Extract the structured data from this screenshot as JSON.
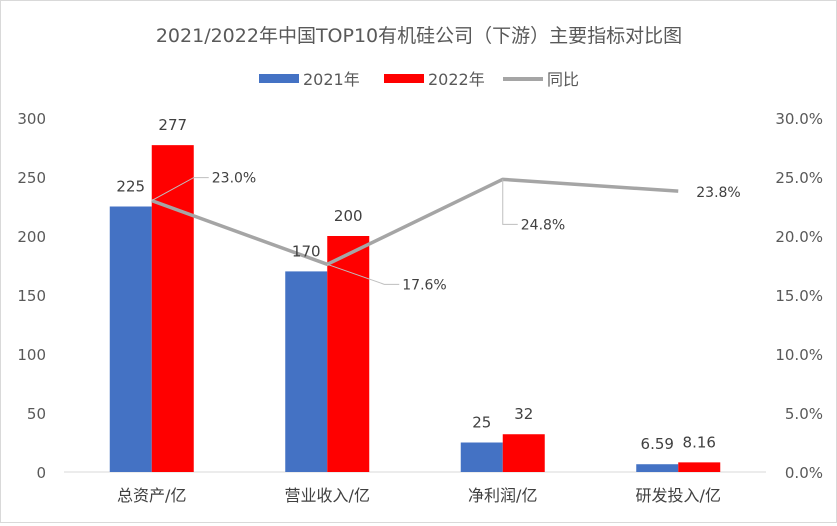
{
  "chart_data": {
    "type": "bar",
    "title": "2021/2022年中国TOP10有机硅公司（下游）主要指标对比图",
    "categories": [
      "总资产/亿",
      "营业收入/亿",
      "净利润/亿",
      "研发投入/亿"
    ],
    "series": [
      {
        "name": "2021年",
        "type": "bar",
        "axis": "left",
        "color": "#4472C4",
        "values": [
          225,
          170,
          25,
          6.59
        ],
        "labels": [
          "225",
          "170",
          "25",
          "6.59"
        ]
      },
      {
        "name": "2022年",
        "type": "bar",
        "axis": "left",
        "color": "#FF0000",
        "values": [
          277,
          200,
          32,
          8.16
        ],
        "labels": [
          "277",
          "200",
          "32",
          "8.16"
        ]
      },
      {
        "name": "同比",
        "type": "line",
        "axis": "right",
        "color": "#A5A5A5",
        "values": [
          23.0,
          17.6,
          24.8,
          23.8
        ],
        "labels": [
          "23.0%",
          "17.6%",
          "24.8%",
          "23.8%"
        ]
      }
    ],
    "ylim": [
      0,
      300
    ],
    "yticks": [
      "0",
      "50",
      "100",
      "150",
      "200",
      "250",
      "300"
    ],
    "y2lim": [
      0,
      30
    ],
    "y2ticks": [
      "0.0%",
      "5.0%",
      "10.0%",
      "15.0%",
      "20.0%",
      "25.0%",
      "30.0%"
    ],
    "legend_position": "top",
    "grid": false
  }
}
